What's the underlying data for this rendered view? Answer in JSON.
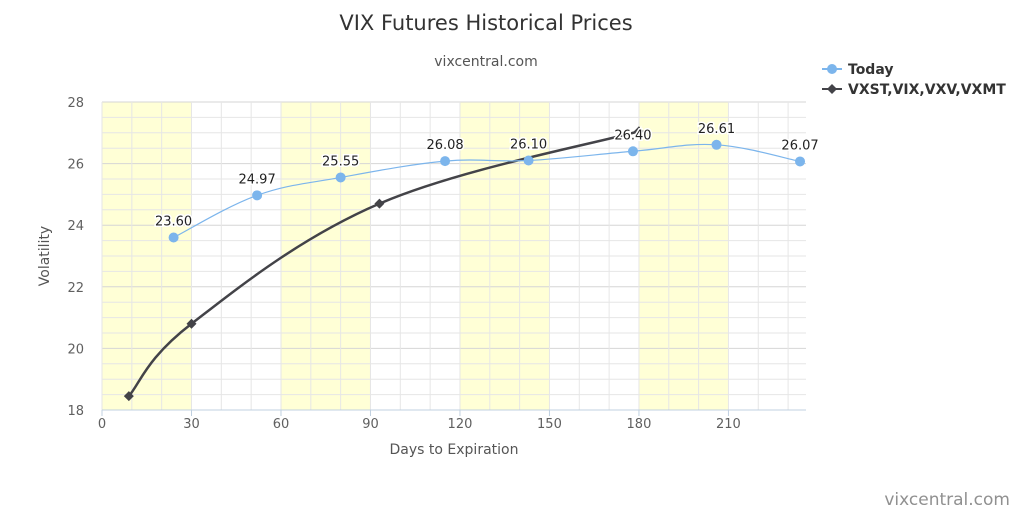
{
  "chart_data": {
    "type": "line",
    "title": "VIX Futures Historical Prices",
    "subtitle": "vixcentral.com",
    "xlabel": "Days to Expiration",
    "ylabel": "Volatility",
    "xlim": [
      0,
      236
    ],
    "ylim": [
      18,
      28
    ],
    "x_ticks": [
      0,
      30,
      60,
      90,
      120,
      150,
      180,
      210
    ],
    "y_ticks": [
      18,
      20,
      22,
      24,
      26,
      28
    ],
    "grid": true,
    "shaded_bands": [
      [
        0,
        30
      ],
      [
        60,
        90
      ],
      [
        120,
        150
      ],
      [
        180,
        210
      ]
    ],
    "band_color": "#ffffd6",
    "legend_position": "top-right",
    "series": [
      {
        "name": "Today",
        "color": "#7cb5ec",
        "marker": "circle",
        "x": [
          24,
          52,
          80,
          115,
          143,
          178,
          206,
          234
        ],
        "y": [
          23.6,
          24.97,
          25.55,
          26.08,
          26.1,
          26.4,
          26.61,
          26.07
        ],
        "labels": [
          "23.60",
          "24.97",
          "25.55",
          "26.08",
          "26.10",
          "26.40",
          "26.61",
          "26.07"
        ]
      },
      {
        "name": "VXST,VIX,VXV,VXMT",
        "color": "#434348",
        "marker": "diamond",
        "x": [
          9,
          30,
          93,
          180
        ],
        "y": [
          18.45,
          20.8,
          24.7,
          27.05
        ]
      }
    ],
    "credit": "vixcentral.com"
  }
}
